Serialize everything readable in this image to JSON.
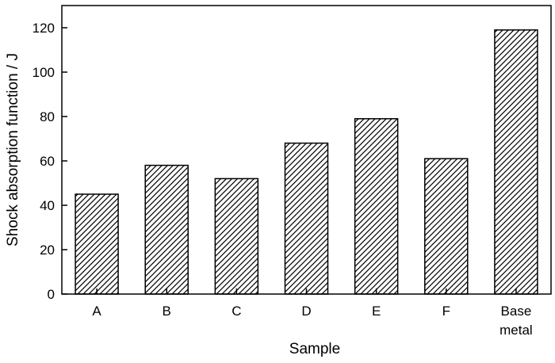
{
  "chart_data": {
    "type": "bar",
    "categories": [
      "A",
      "B",
      "C",
      "D",
      "E",
      "F",
      "Base metal"
    ],
    "category_lines": [
      [
        "A"
      ],
      [
        "B"
      ],
      [
        "C"
      ],
      [
        "D"
      ],
      [
        "E"
      ],
      [
        "F"
      ],
      [
        "Base",
        "metal"
      ]
    ],
    "values": [
      45,
      58,
      52,
      68,
      79,
      61,
      119
    ],
    "xlabel": "Sample",
    "ylabel": "Shock absorption function / J",
    "ylim": [
      0,
      130
    ],
    "yticks": [
      0,
      20,
      40,
      60,
      80,
      100,
      120
    ],
    "grid": false,
    "bar_fill": "hatched",
    "colors": {
      "stroke": "#000000",
      "background": "#ffffff"
    }
  }
}
